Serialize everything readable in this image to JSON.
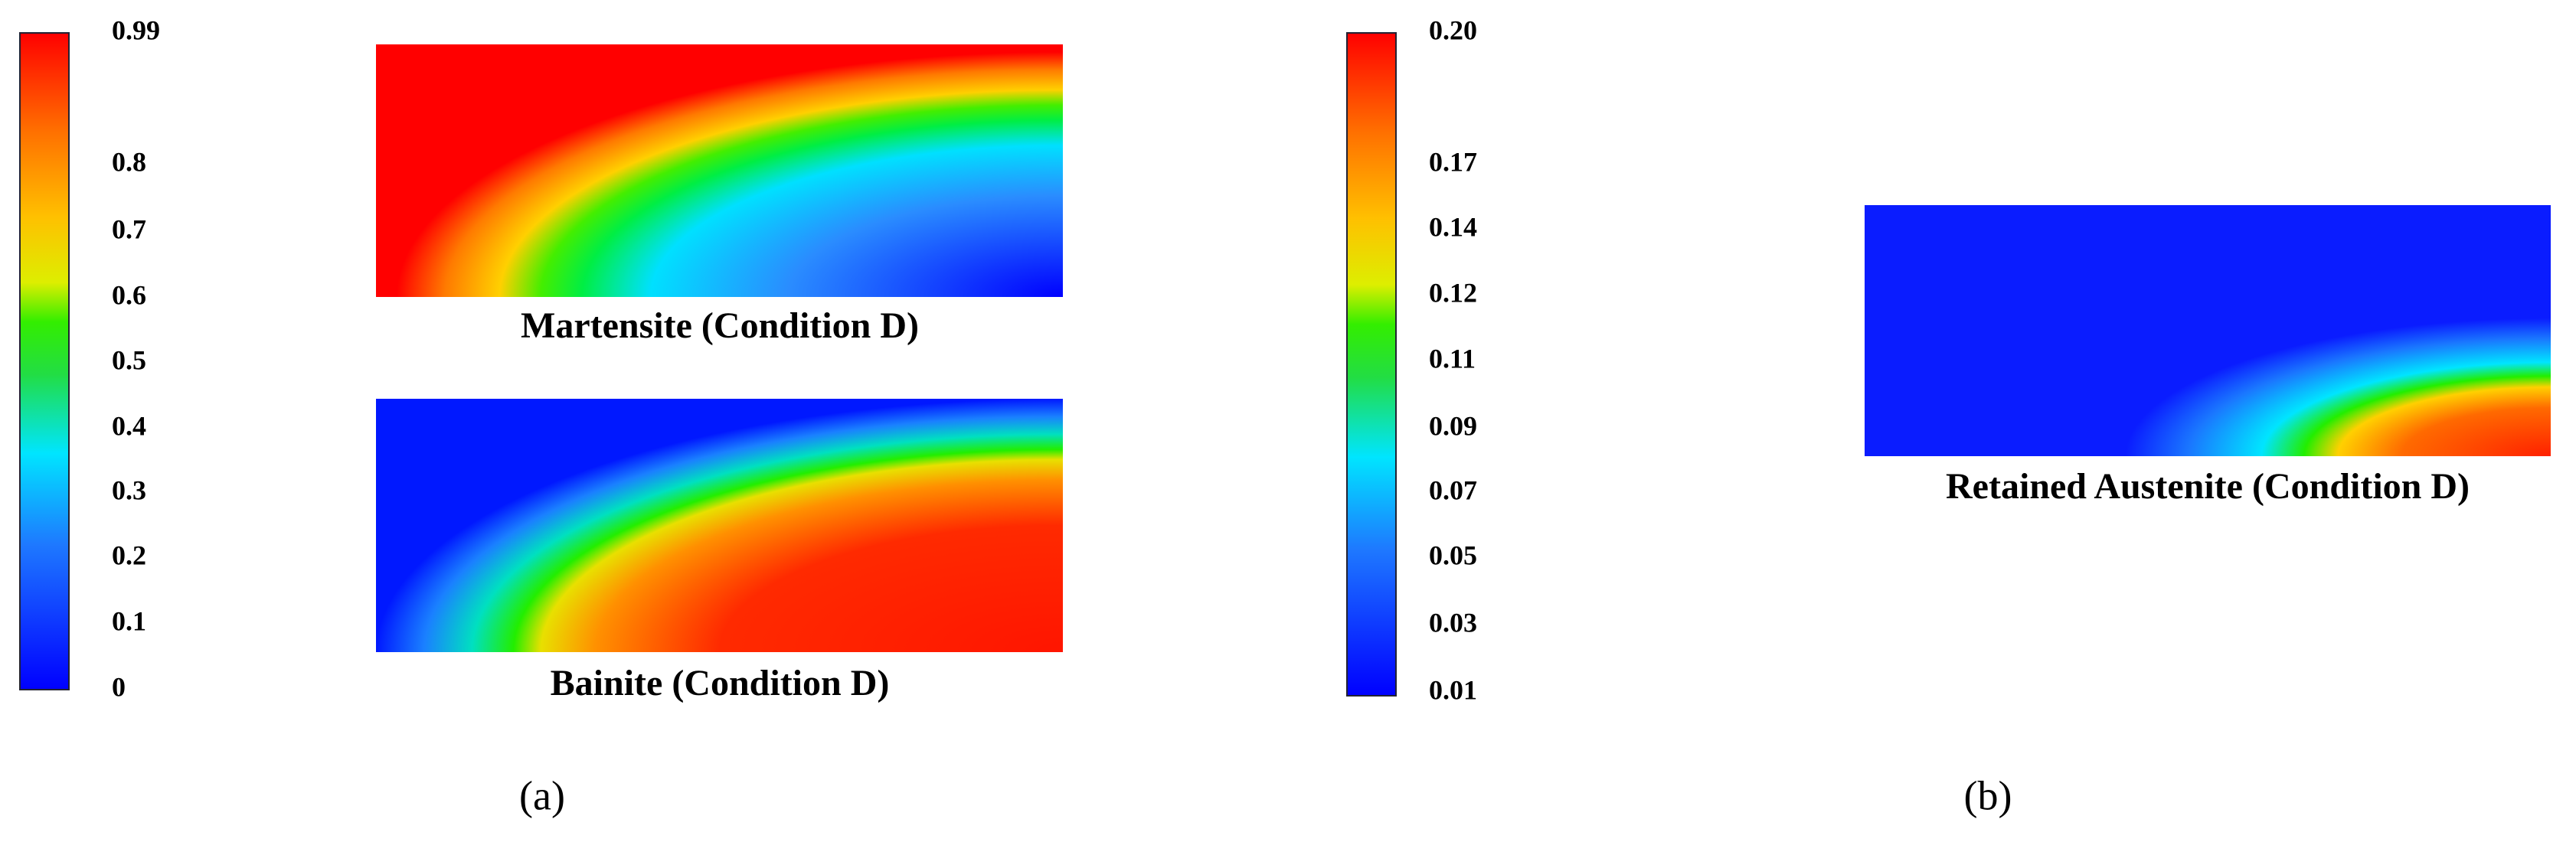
{
  "panels": [
    {
      "label": "(a)",
      "colorbar": {
        "ticks": [
          "0.99",
          "0.8",
          "0.7",
          "0.6",
          "0.5",
          "0.4",
          "0.3",
          "0.2",
          "0.1",
          "0"
        ]
      },
      "plots": [
        {
          "caption": "Martensite (Condition D)"
        },
        {
          "caption": "Bainite (Condition D)"
        }
      ]
    },
    {
      "label": "(b)",
      "colorbar": {
        "ticks": [
          "0.20",
          "0.17",
          "0.14",
          "0.12",
          "0.11",
          "0.09",
          "0.07",
          "0.05",
          "0.03",
          "0.01"
        ]
      },
      "plots": [
        {
          "caption": "Retained Austenite (Condition D)"
        }
      ]
    }
  ]
}
